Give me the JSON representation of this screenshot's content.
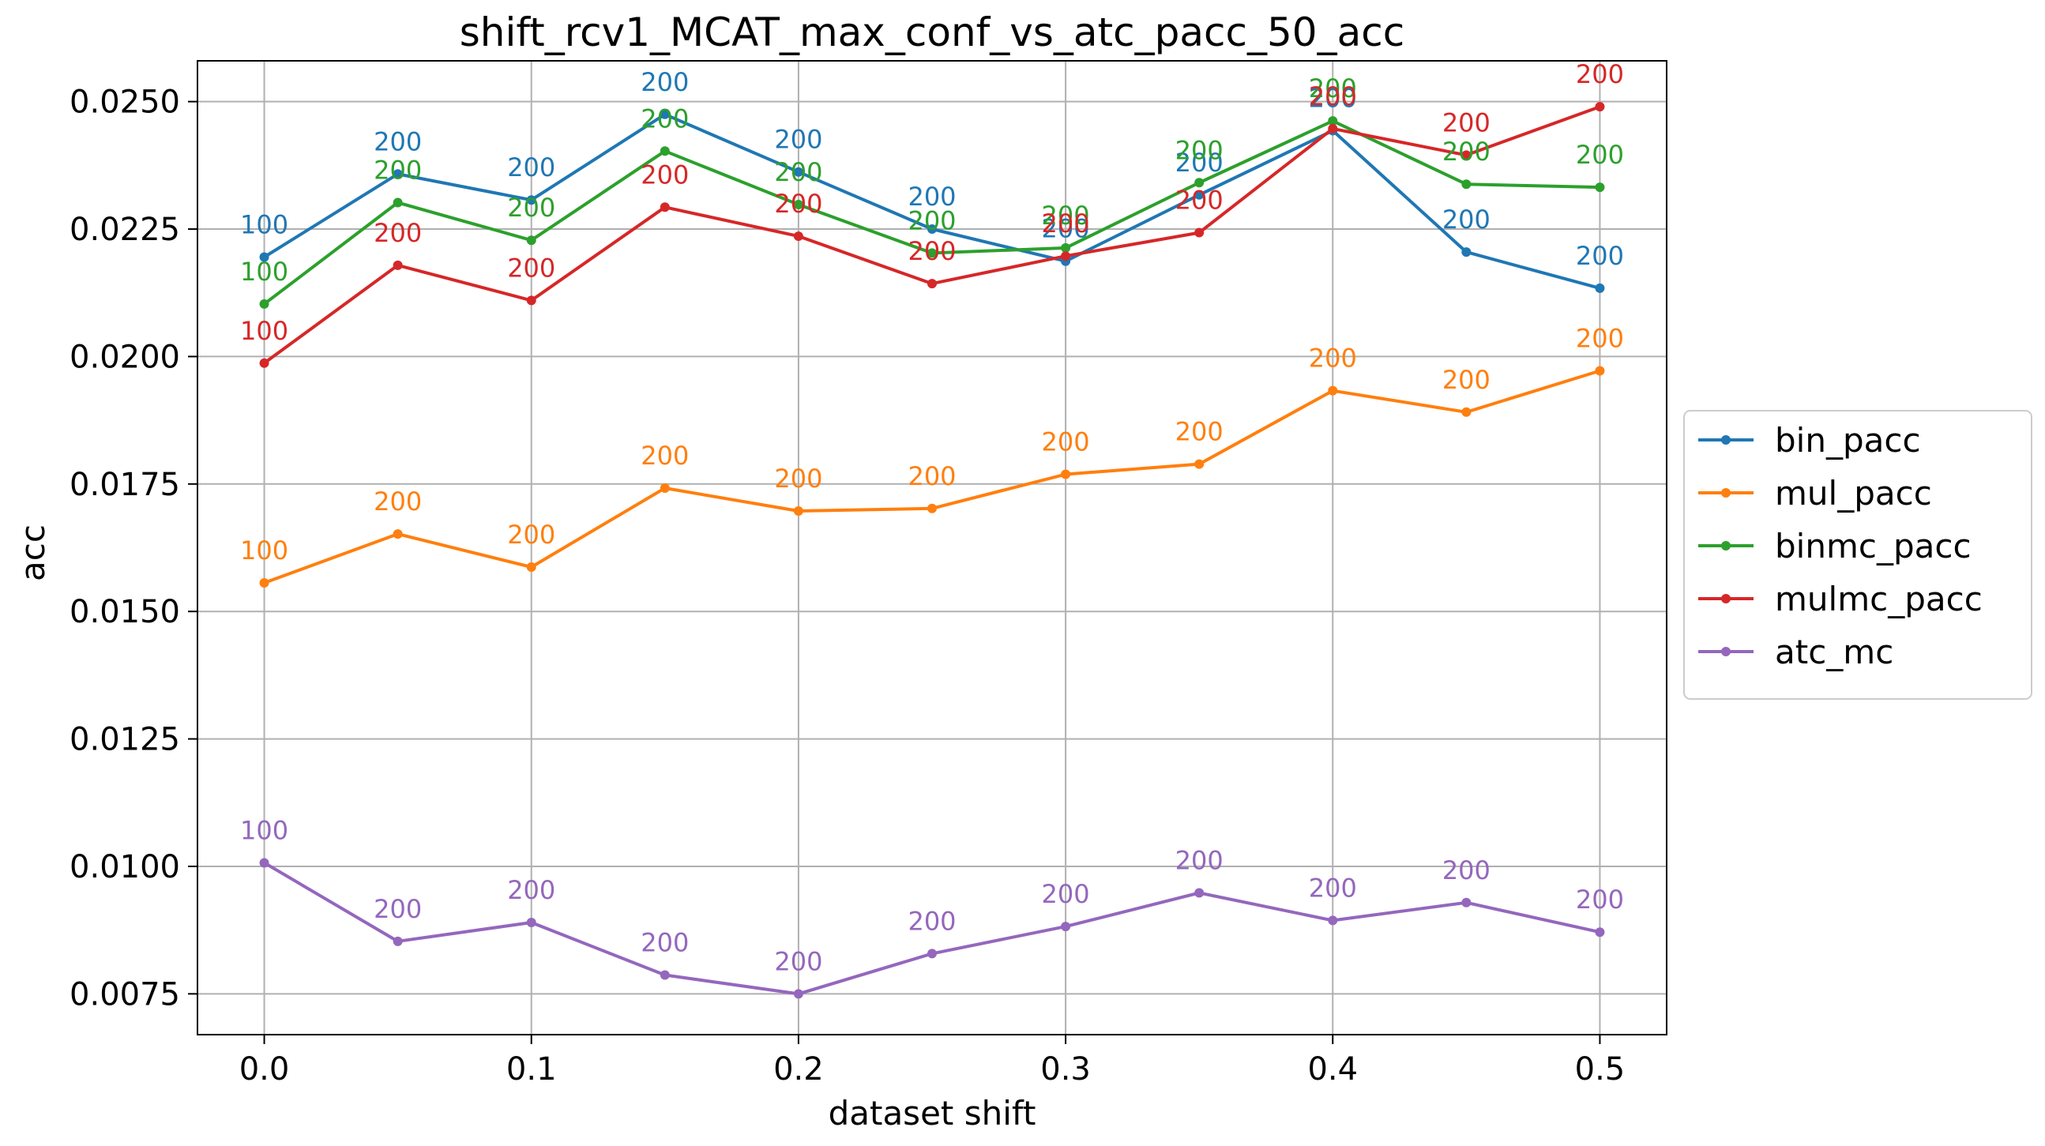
{
  "chart_data": {
    "type": "line",
    "title": "shift_rcv1_MCAT_max_conf_vs_atc_pacc_50_acc",
    "xlabel": "dataset shift",
    "ylabel": "acc",
    "x": [
      0.0,
      0.05,
      0.1,
      0.15,
      0.2,
      0.25,
      0.3,
      0.35,
      0.4,
      0.45,
      0.5
    ],
    "x_ticks": [
      0.0,
      0.1,
      0.2,
      0.3,
      0.4,
      0.5
    ],
    "x_tick_labels": [
      "0.0",
      "0.1",
      "0.2",
      "0.3",
      "0.4",
      "0.5"
    ],
    "y_ticks": [
      0.0075,
      0.01,
      0.0125,
      0.015,
      0.0175,
      0.02,
      0.0225,
      0.025
    ],
    "y_tick_labels": [
      "0.0075",
      "0.0100",
      "0.0125",
      "0.0150",
      "0.0175",
      "0.0200",
      "0.0225",
      "0.0250"
    ],
    "xlim": [
      -0.025,
      0.525
    ],
    "ylim": [
      0.0067,
      0.0258
    ],
    "grid": true,
    "legend_position": "center-right outside",
    "series": [
      {
        "name": "bin_pacc",
        "color": "#1f77b4",
        "values": [
          0.02195,
          0.02358,
          0.02307,
          0.02475,
          0.02362,
          0.0225,
          0.02187,
          0.02317,
          0.02443,
          0.02205,
          0.02134
        ],
        "labels": [
          "100",
          "200",
          "200",
          "200",
          "200",
          "200",
          "200",
          "200",
          "200",
          "200",
          "200"
        ]
      },
      {
        "name": "mul_pacc",
        "color": "#ff7f0e",
        "values": [
          0.01556,
          0.01652,
          0.01587,
          0.01742,
          0.01697,
          0.01702,
          0.01769,
          0.01789,
          0.01933,
          0.01891,
          0.01972
        ],
        "labels": [
          "100",
          "200",
          "200",
          "200",
          "200",
          "200",
          "200",
          "200",
          "200",
          "200",
          "200"
        ]
      },
      {
        "name": "binmc_pacc",
        "color": "#2ca02c",
        "values": [
          0.02103,
          0.02302,
          0.02228,
          0.02403,
          0.02298,
          0.02203,
          0.02213,
          0.02341,
          0.02462,
          0.02338,
          0.02332
        ],
        "labels": [
          "100",
          "200",
          "200",
          "200",
          "200",
          "200",
          "200",
          "200",
          "200",
          "200",
          "200"
        ]
      },
      {
        "name": "mulmc_pacc",
        "color": "#d62728",
        "values": [
          0.01987,
          0.02179,
          0.0211,
          0.02293,
          0.02236,
          0.02143,
          0.02197,
          0.02243,
          0.02447,
          0.02395,
          0.0249
        ],
        "labels": [
          "100",
          "200",
          "200",
          "200",
          "200",
          "200",
          "200",
          "200",
          "200",
          "200",
          "200"
        ]
      },
      {
        "name": "atc_mc",
        "color": "#9467bd",
        "values": [
          0.01007,
          0.00853,
          0.0089,
          0.00787,
          0.0075,
          0.00829,
          0.00882,
          0.00948,
          0.00894,
          0.00929,
          0.00871
        ],
        "labels": [
          "100",
          "200",
          "200",
          "200",
          "200",
          "200",
          "200",
          "200",
          "200",
          "200",
          "200"
        ]
      }
    ]
  }
}
